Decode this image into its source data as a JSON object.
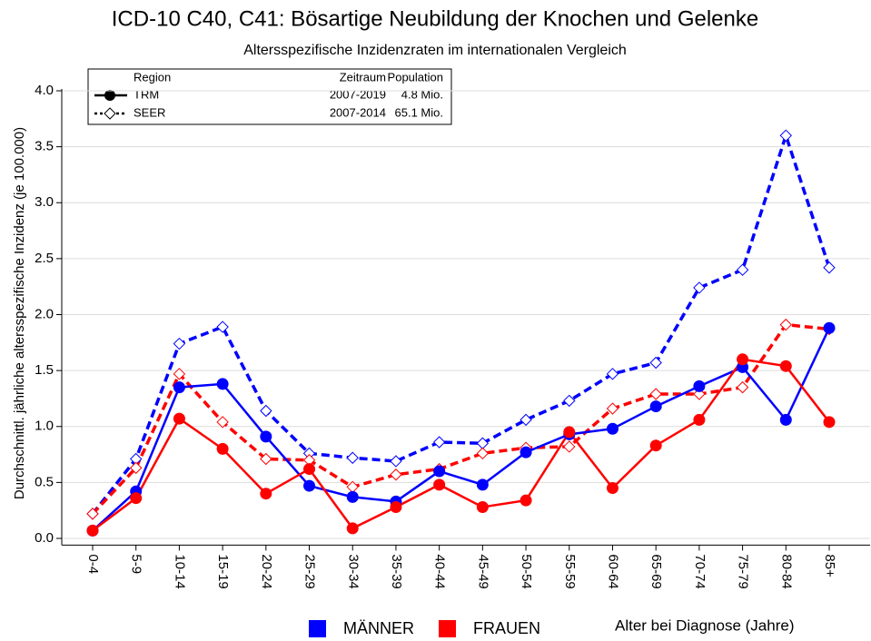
{
  "chart_data": {
    "type": "line",
    "title": "ICD-10 C40, C41: Bösartige Neubildung der Knochen und Gelenke",
    "subtitle": "Altersspezifische Inzidenzraten im internationalen Vergleich",
    "y_label": "Durchschnittl. jährliche altersspezifische Inzidenz (je 100.000)",
    "x_label": "Alter bei Diagnose (Jahre)",
    "categories": [
      "0-4",
      "5-9",
      "10-14",
      "15-19",
      "20-24",
      "25-29",
      "30-34",
      "35-39",
      "40-44",
      "45-49",
      "50-54",
      "55-59",
      "60-64",
      "65-69",
      "70-74",
      "75-79",
      "80-84",
      "85+"
    ],
    "ylim": [
      -0.06,
      4.0
    ],
    "yticks": [
      {
        "value": 0,
        "label": "0.0"
      },
      {
        "value": 0.5,
        "label": "0.5"
      },
      {
        "value": 1,
        "label": "1.0"
      },
      {
        "value": 1.5,
        "label": "1.5"
      },
      {
        "value": 2,
        "label": "2.0"
      },
      {
        "value": 2.5,
        "label": "2.5"
      },
      {
        "value": 3,
        "label": "3.0"
      },
      {
        "value": 3.5,
        "label": "3.5"
      },
      {
        "value": 4,
        "label": "4.0"
      }
    ],
    "grid": true,
    "region_legend": {
      "headers": [
        "Region",
        "Zeitraum",
        "Population"
      ],
      "rows": [
        [
          "TRM",
          "2007-2019",
          "4.8 Mio."
        ],
        [
          "SEER",
          "2007-2014",
          "65.1 Mio."
        ]
      ]
    },
    "sex_legend": [
      {
        "name": "MÄNNER",
        "color": "#0000ff"
      },
      {
        "name": "FRAUEN",
        "color": "#ff0000"
      }
    ],
    "series": [
      {
        "color": "#0000ff",
        "dashed": true,
        "values": [
          0.22,
          0.71,
          1.74,
          1.89,
          1.14,
          0.76,
          0.72,
          0.69,
          0.86,
          0.85,
          1.06,
          1.23,
          1.47,
          1.57,
          2.24,
          2.4,
          3.6,
          2.42
        ]
      },
      {
        "color": "#ff0000",
        "dashed": true,
        "values": [
          0.22,
          0.63,
          1.47,
          1.04,
          0.71,
          0.7,
          0.46,
          0.57,
          0.62,
          0.76,
          0.81,
          0.82,
          1.16,
          1.29,
          1.29,
          1.35,
          1.91,
          1.87
        ]
      },
      {
        "color": "#0000ff",
        "dashed": false,
        "values": [
          0.07,
          0.42,
          1.35,
          1.38,
          0.91,
          0.47,
          0.37,
          0.33,
          0.6,
          0.48,
          0.77,
          0.93,
          0.98,
          1.18,
          1.36,
          1.53,
          1.06,
          1.88
        ]
      },
      {
        "color": "#ff0000",
        "dashed": false,
        "values": [
          0.07,
          0.36,
          1.07,
          0.8,
          0.4,
          0.62,
          0.09,
          0.28,
          0.48,
          0.28,
          0.34,
          0.95,
          0.45,
          0.83,
          1.06,
          1.6,
          1.54,
          1.04
        ]
      }
    ]
  }
}
